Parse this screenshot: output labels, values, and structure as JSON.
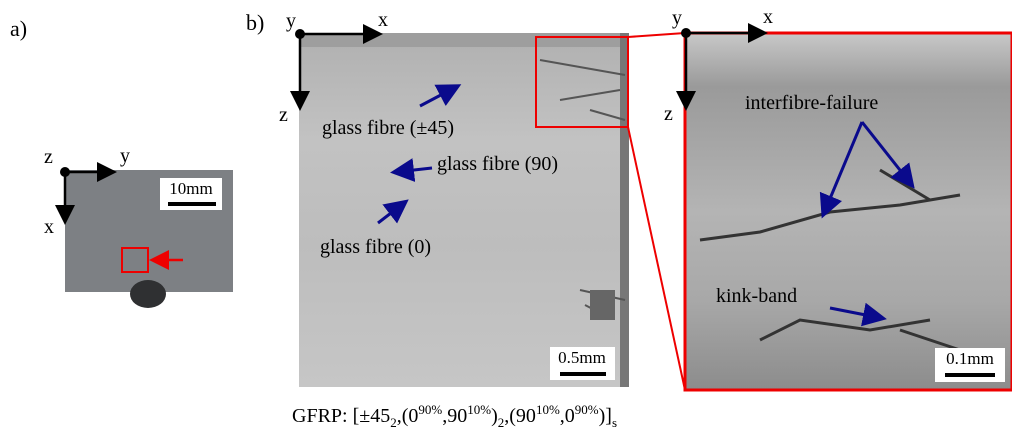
{
  "panel_a": {
    "label": "a)",
    "axes": {
      "origin": "z",
      "horizontal": "y",
      "vertical": "x"
    },
    "scale_bar": "10mm"
  },
  "panel_b": {
    "label": "b)",
    "axes": {
      "origin": "y",
      "horizontal": "x",
      "vertical": "z"
    },
    "scale_bar": "0.5mm",
    "annotations": [
      "glass fibre (±45)",
      "glass fibre (90)",
      "glass fibre (0)"
    ]
  },
  "zoom": {
    "axes": {
      "origin": "y",
      "horizontal": "x",
      "vertical": "z"
    },
    "scale_bar": "0.1mm",
    "annotations": [
      "interfibre-failure",
      "kink-band"
    ]
  },
  "caption": {
    "parts": [
      "GFRP: [±45",
      "2",
      ",(0",
      "90%",
      ",90",
      "10%",
      ")",
      "2",
      ",(90",
      "10%",
      ",0",
      "90%",
      ")]",
      "s"
    ]
  }
}
